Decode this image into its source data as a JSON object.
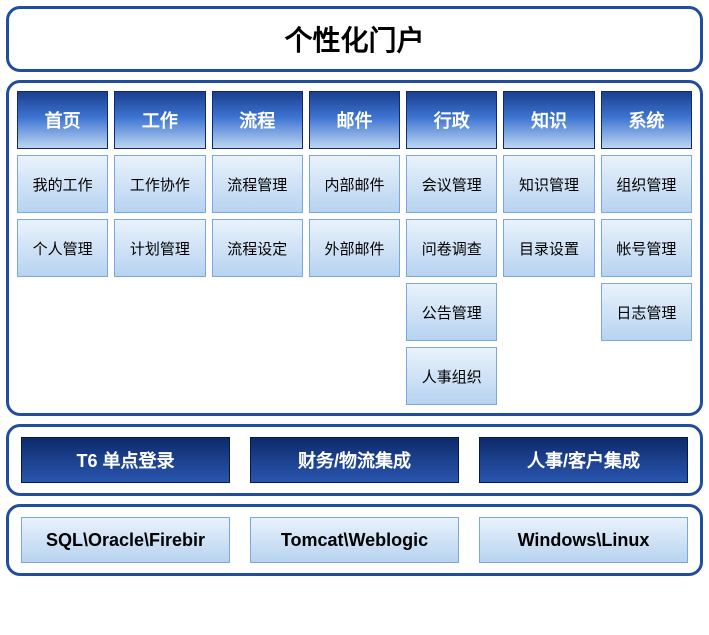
{
  "colors": {
    "panel_border": "#1f4e9c",
    "title_text": "#000000",
    "header_gradient_top": "#1a3f8f",
    "header_gradient_mid": "#3d74d1",
    "header_gradient_bot": "#bdd6f2",
    "header_border": "#0e2a6b",
    "header_text": "#ffffff",
    "cell_gradient_top": "#e9f2fc",
    "cell_gradient_bot": "#b7d3f0",
    "cell_border": "#7ba7dd",
    "dark_btn_top": "#0d2a6b",
    "dark_btn_bot": "#2a56b0",
    "dark_btn_border": "#061a4a",
    "dark_btn_text": "#ffffff",
    "row4_text": "#000000"
  },
  "title": {
    "text": "个性化门户",
    "fontsize": 28
  },
  "grid": {
    "columns": 7,
    "rows": 5,
    "headers": [
      "首页",
      "工作",
      "流程",
      "邮件",
      "行政",
      "知识",
      "系统"
    ],
    "body": [
      [
        "我的工作",
        "工作协作",
        "流程管理",
        "内部邮件",
        "会议管理",
        "知识管理",
        "组织管理"
      ],
      [
        "个人管理",
        "计划管理",
        "流程设定",
        "外部邮件",
        "问卷调查",
        "目录设置",
        "帐号管理"
      ],
      [
        "",
        "",
        "",
        "",
        "公告管理",
        "",
        "日志管理"
      ],
      [
        "",
        "",
        "",
        "",
        "人事组织",
        "",
        ""
      ]
    ]
  },
  "integration_row": [
    "T6 单点登录",
    "财务/物流集成",
    "人事/客户集成"
  ],
  "platform_row": [
    "SQL\\Oracle\\Firebir",
    "Tomcat\\Weblogic",
    "Windows\\Linux"
  ]
}
